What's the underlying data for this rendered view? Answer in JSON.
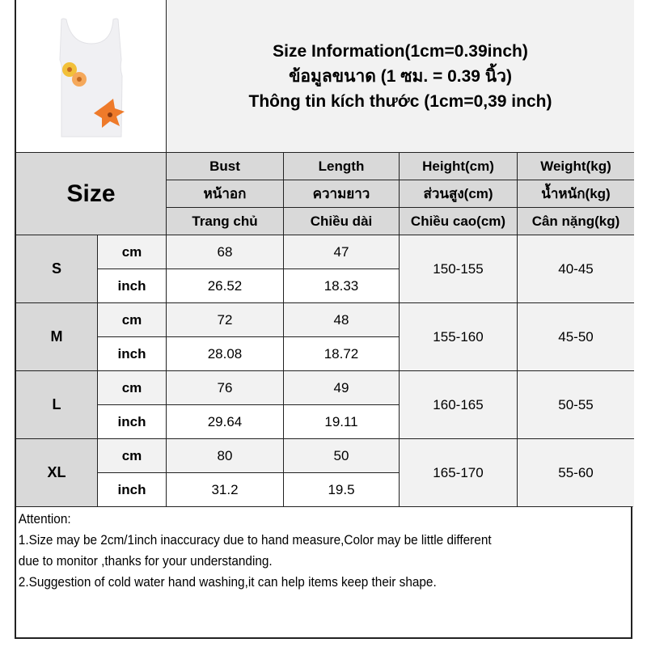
{
  "title_lines": [
    "Size Information(1cm=0.39inch)",
    "ข้อมูลขนาด (1 ซม. = 0.39 นิ้ว)",
    "Thông tin kích thước (1cm=0,39 inch)"
  ],
  "size_header": "Size",
  "columns": [
    {
      "en": "Bust",
      "th": "หน้าอก",
      "vi": "Trang chủ"
    },
    {
      "en": "Length",
      "th": "ความยาว",
      "vi": "Chiều dài"
    },
    {
      "en": "Height(cm)",
      "th": "ส่วนสูง(cm)",
      "vi": "Chiều cao(cm)"
    },
    {
      "en": "Weight(kg)",
      "th": "น้ำหนัก(kg)",
      "vi": "Cân nặng(kg)"
    }
  ],
  "units": {
    "cm": "cm",
    "inch": "inch"
  },
  "rows": [
    {
      "size": "S",
      "bust_cm": "68",
      "length_cm": "47",
      "bust_in": "26.52",
      "length_in": "18.33",
      "height": "150-155",
      "weight": "40-45"
    },
    {
      "size": "M",
      "bust_cm": "72",
      "length_cm": "48",
      "bust_in": "28.08",
      "length_in": "18.72",
      "height": "155-160",
      "weight": "45-50"
    },
    {
      "size": "L",
      "bust_cm": "76",
      "length_cm": "49",
      "bust_in": "29.64",
      "length_in": "19.11",
      "height": "160-165",
      "weight": "50-55"
    },
    {
      "size": "XL",
      "bust_cm": "80",
      "length_cm": "50",
      "bust_in": "31.2",
      "length_in": "19.5",
      "height": "165-170",
      "weight": "55-60"
    }
  ],
  "attention": {
    "heading": "Attention:",
    "lines": [
      "1.Size may be 2cm/1inch inaccuracy due to hand measure,Color may be little different",
      "due to monitor ,thanks for your understanding.",
      "2.Suggestion of cold water hand washing,it can help items keep their shape."
    ]
  },
  "colors": {
    "header_gray": "#d9d9d9",
    "light_gray": "#f2f2f2",
    "border": "#222222"
  }
}
